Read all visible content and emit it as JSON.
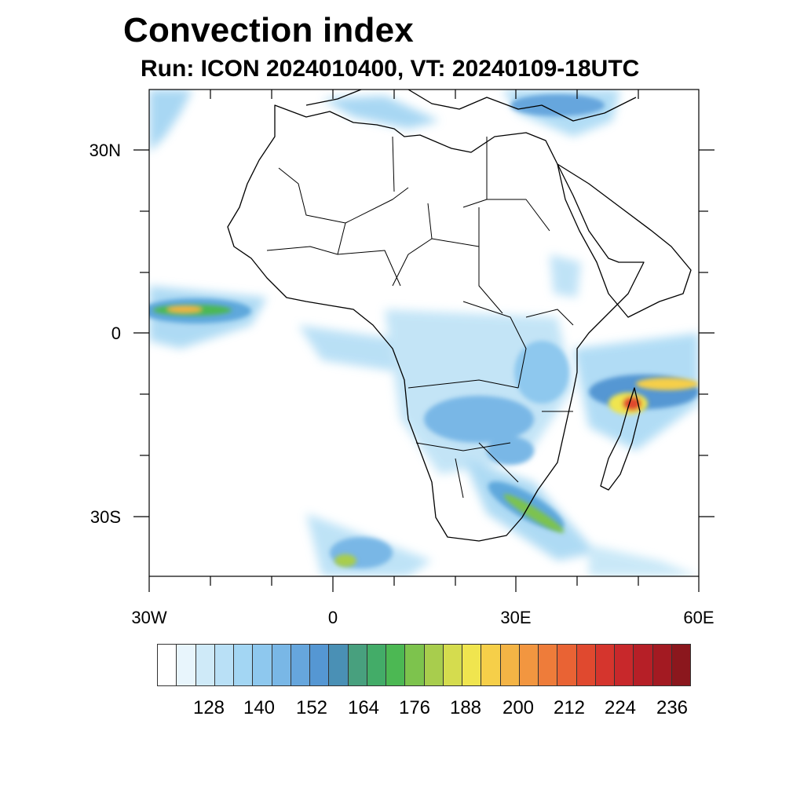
{
  "title": "Convection index",
  "subtitle": "Run: ICON 2024010400,  VT: 20240109-18UTC",
  "axes": {
    "lat_labels": [
      "30N",
      "0",
      "30S"
    ],
    "lon_labels": [
      "30W",
      "0",
      "30E",
      "60E"
    ],
    "lon_range_deg": [
      -30,
      60
    ],
    "lat_range_deg": [
      -40,
      40
    ]
  },
  "colorbar": {
    "labels": [
      "128",
      "140",
      "152",
      "164",
      "176",
      "188",
      "200",
      "212",
      "224",
      "236"
    ],
    "colors": [
      "#ffffff",
      "#e8f5fc",
      "#cfeaf8",
      "#b9e0f6",
      "#a3d6f3",
      "#8ec8ee",
      "#79b7e6",
      "#66a6dd",
      "#5597d3",
      "#4a90b5",
      "#48a07e",
      "#43ac68",
      "#4cb853",
      "#7dc34d",
      "#a8cd4d",
      "#d5dc4e",
      "#f0e54f",
      "#f6cf49",
      "#f4b445",
      "#f29640",
      "#ee7c3a",
      "#e96334",
      "#e0492f",
      "#d5352d",
      "#c8282b",
      "#b61f27",
      "#a31a22",
      "#8b171d"
    ]
  },
  "map_features": {
    "regions": [
      "Africa",
      "Arabian Peninsula",
      "Madagascar",
      "Mediterranean coast"
    ],
    "convection_areas": [
      "Equatorial Atlantic",
      "Congo Basin",
      "Southeast Africa",
      "Mozambique Channel",
      "Southwest Indian Ocean",
      "Mediterranean",
      "Southern Ocean"
    ]
  }
}
